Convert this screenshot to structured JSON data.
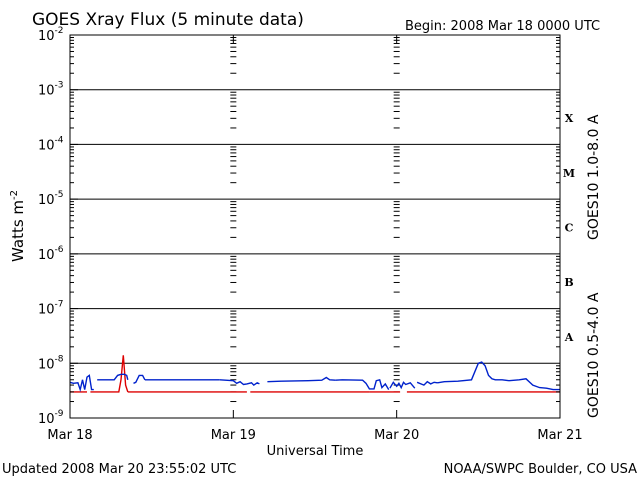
{
  "header": {
    "title": "GOES Xray Flux (5 minute data)",
    "begin": "Begin:  2008 Mar 18 0000 UTC"
  },
  "footer": {
    "updated": "Updated 2008 Mar 20 23:55:02 UTC",
    "source": "NOAA/SWPC Boulder, CO USA"
  },
  "chart_data": {
    "type": "line",
    "title": "GOES Xray Flux (5 minute data)",
    "xlabel": "Universal Time",
    "ylabel": "Watts m",
    "ylabel_superscript": "-2",
    "y_scale": "log",
    "ylim": [
      1e-09,
      0.01
    ],
    "xlim": [
      "2008-03-18T00:00Z",
      "2008-03-21T00:00Z"
    ],
    "x_ticks": [
      "Mar 18",
      "Mar 19",
      "Mar 20",
      "Mar 21"
    ],
    "y_ticks": [
      {
        "base": "10",
        "exp": "-9"
      },
      {
        "base": "10",
        "exp": "-8"
      },
      {
        "base": "10",
        "exp": "-7"
      },
      {
        "base": "10",
        "exp": "-6"
      },
      {
        "base": "10",
        "exp": "-5"
      },
      {
        "base": "10",
        "exp": "-4"
      },
      {
        "base": "10",
        "exp": "-3"
      },
      {
        "base": "10",
        "exp": "-2"
      }
    ],
    "flare_classes": [
      "A",
      "B",
      "C",
      "M",
      "X"
    ],
    "grid": true,
    "series": [
      {
        "name": "GOES10 1.0-8.0 A",
        "color": "#dd0000",
        "segments": [
          {
            "x": [
              "2008-03-18 00:00",
              "2008-03-18 02:30"
            ],
            "y": [
              3e-09,
              3e-09
            ]
          },
          {
            "x": [
              "2008-03-18 03:00",
              "2008-03-18 07:10",
              "2008-03-18 07:30",
              "2008-03-18 07:50",
              "2008-03-18 08:10",
              "2008-03-18 08:30"
            ],
            "y": [
              3e-09,
              3e-09,
              5e-09,
              1.4e-08,
              4e-09,
              3e-09
            ]
          },
          {
            "x": [
              "2008-03-18 08:30",
              "2008-03-19 02:00"
            ],
            "y": [
              3e-09,
              3e-09
            ]
          },
          {
            "x": [
              "2008-03-19 02:30",
              "2008-03-19 20:00"
            ],
            "y": [
              3e-09,
              3e-09
            ]
          },
          {
            "x": [
              "2008-03-19 20:00",
              "2008-03-20 00:30"
            ],
            "y": [
              3e-09,
              3e-09
            ]
          },
          {
            "x": [
              "2008-03-20 01:30",
              "2008-03-21 00:00"
            ],
            "y": [
              3e-09,
              3e-09
            ]
          }
        ]
      },
      {
        "name": "GOES10 0.5-4.0 A",
        "color": "#0022cc",
        "segments": [
          {
            "x": [
              "2008-03-18 00:00",
              "2008-03-18 00:30",
              "2008-03-18 01:10",
              "2008-03-18 01:30",
              "2008-03-18 01:50",
              "2008-03-18 02:10",
              "2008-03-18 02:30",
              "2008-03-18 02:50",
              "2008-03-18 03:10",
              "2008-03-18 03:30"
            ],
            "y": [
              4.5e-09,
              4.3e-09,
              4.4e-09,
              3.3e-09,
              5e-09,
              3.3e-09,
              5.6e-09,
              6e-09,
              3.3e-09,
              3.3e-09
            ]
          },
          {
            "x": [
              "2008-03-18 04:00",
              "2008-03-18 06:00",
              "2008-03-18 06:30",
              "2008-03-18 07:00",
              "2008-03-18 07:30"
            ],
            "y": [
              5e-09,
              5e-09,
              5e-09,
              6e-09,
              6.3e-09
            ]
          },
          {
            "x": [
              "2008-03-18 07:30",
              "2008-03-18 08:00",
              "2008-03-18 08:20",
              "2008-03-18 08:30"
            ],
            "y": [
              6.3e-09,
              6.3e-09,
              6e-09,
              5e-09
            ]
          },
          {
            "x": [
              "2008-03-18 09:20",
              "2008-03-18 09:40",
              "2008-03-18 10:10",
              "2008-03-18 10:40",
              "2008-03-18 11:00"
            ],
            "y": [
              4.3e-09,
              4.5e-09,
              6e-09,
              6e-09,
              5e-09
            ]
          },
          {
            "x": [
              "2008-03-18 11:00",
              "2008-03-18 14:00",
              "2008-03-18 15:00",
              "2008-03-18 18:00",
              "2008-03-18 19:00",
              "2008-03-18 22:00"
            ],
            "y": [
              5e-09,
              5e-09,
              5e-09,
              5e-09,
              5e-09,
              5e-09
            ]
          },
          {
            "x": [
              "2008-03-18 22:00",
              "2008-03-19 00:00",
              "2008-03-19 00:30",
              "2008-03-19 01:00",
              "2008-03-19 01:30",
              "2008-03-19 02:00",
              "2008-03-19 02:40",
              "2008-03-19 03:00",
              "2008-03-19 03:30",
              "2008-03-19 03:50"
            ],
            "y": [
              5e-09,
              4.8e-09,
              4.3e-09,
              4.6e-09,
              4.1e-09,
              4.2e-09,
              4.4e-09,
              4e-09,
              4.4e-09,
              4.2e-09
            ]
          },
          {
            "x": [
              "2008-03-19 05:00",
              "2008-03-19 07:00",
              "2008-03-19 11:00",
              "2008-03-19 13:00",
              "2008-03-19 13:40",
              "2008-03-19 14:10",
              "2008-03-19 15:00"
            ],
            "y": [
              4.6e-09,
              4.7e-09,
              4.8e-09,
              4.9e-09,
              5.5e-09,
              5e-09,
              4.9e-09
            ]
          },
          {
            "x": [
              "2008-03-19 15:00",
              "2008-03-19 16:00",
              "2008-03-19 19:00",
              "2008-03-19 19:30",
              "2008-03-19 20:00",
              "2008-03-19 20:40",
              "2008-03-19 21:00",
              "2008-03-19 21:30",
              "2008-03-19 21:50",
              "2008-03-19 22:20",
              "2008-03-19 22:50"
            ],
            "y": [
              4.9e-09,
              5e-09,
              4.9e-09,
              4.3e-09,
              3.4e-09,
              3.4e-09,
              4.8e-09,
              5e-09,
              3.6e-09,
              4.2e-09,
              3.3e-09
            ]
          },
          {
            "x": [
              "2008-03-19 23:00",
              "2008-03-19 23:30",
              "2008-03-20 00:00",
              "2008-03-20 00:20",
              "2008-03-20 00:40",
              "2008-03-20 01:00",
              "2008-03-20 01:20",
              "2008-03-20 02:00",
              "2008-03-20 02:40"
            ],
            "y": [
              3.5e-09,
              4.5e-09,
              3.8e-09,
              4.3e-09,
              3.6e-09,
              4.5e-09,
              4.1e-09,
              4.4e-09,
              3.5e-09
            ]
          },
          {
            "x": [
              "2008-03-20 03:00",
              "2008-03-20 04:00",
              "2008-03-20 04:30",
              "2008-03-20 05:00",
              "2008-03-20 05:30",
              "2008-03-20 06:00"
            ],
            "y": [
              4.5e-09,
              4e-09,
              4.6e-09,
              4.2e-09,
              4.5e-09,
              4.4e-09
            ]
          },
          {
            "x": [
              "2008-03-20 06:00",
              "2008-03-20 07:00",
              "2008-03-20 09:00",
              "2008-03-20 11:00",
              "2008-03-20 12:00",
              "2008-03-20 12:30",
              "2008-03-20 13:00",
              "2008-03-20 13:30",
              "2008-03-20 14:00",
              "2008-03-20 14:30",
              "2008-03-20 15:00",
              "2008-03-20 15:30",
              "2008-03-20 16:30"
            ],
            "y": [
              4.4e-09,
              4.6e-09,
              4.7e-09,
              5e-09,
              1e-08,
              1.05e-08,
              9e-09,
              6e-09,
              5.2e-09,
              5e-09,
              5e-09,
              5e-09,
              4.8e-09
            ]
          },
          {
            "x": [
              "2008-03-20 16:30",
              "2008-03-20 18:00",
              "2008-03-20 19:00",
              "2008-03-20 20:00",
              "2008-03-20 21:00",
              "2008-03-20 22:00",
              "2008-03-20 23:00",
              "2008-03-21 00:00"
            ],
            "y": [
              4.8e-09,
              5e-09,
              5.2e-09,
              4e-09,
              3.6e-09,
              3.5e-09,
              3.3e-09,
              3.3e-09
            ]
          }
        ]
      }
    ]
  }
}
